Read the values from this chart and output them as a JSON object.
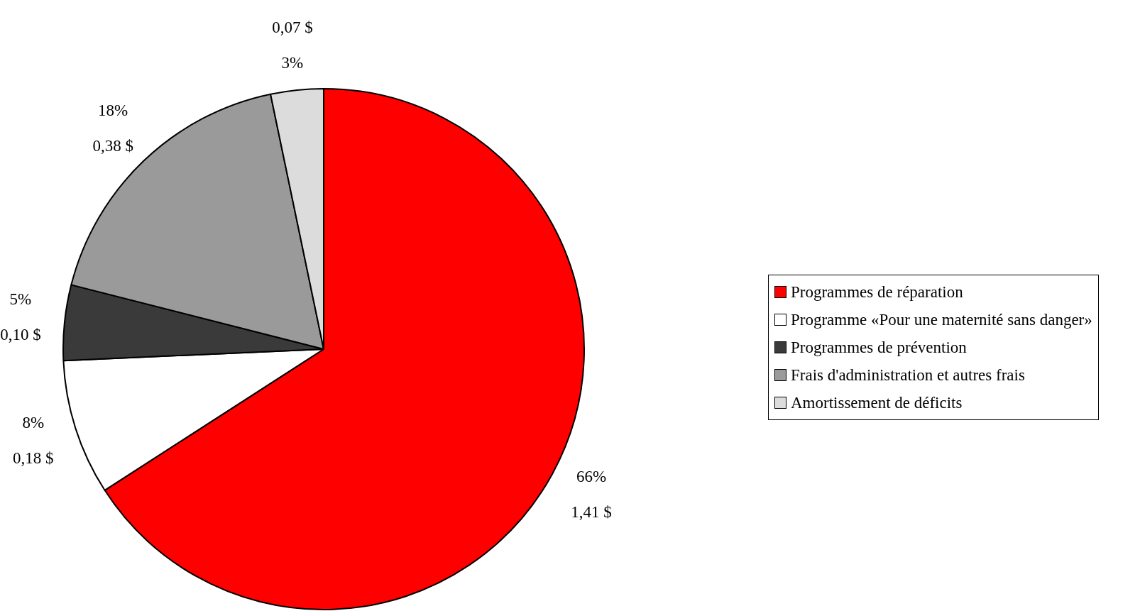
{
  "chart_data": {
    "type": "pie",
    "categories": [
      "Programmes de réparation",
      "Programme «Pour une maternité sans danger»",
      "Programmes de prévention",
      "Frais d'administration et autres frais",
      "Amortissement de déficits"
    ],
    "values": [
      1.41,
      0.18,
      0.1,
      0.38,
      0.07
    ],
    "colors": [
      "#ff0000",
      "#ffffff",
      "#3a3a3a",
      "#9a9a9a",
      "#dcdcdc"
    ],
    "value_labels": [
      "66%\n1,41 $",
      "8%\n0,18 $",
      "5%\n0,10 $",
      "18%\n0,38 $",
      "0,07 $\n3%"
    ],
    "legend": "right"
  }
}
